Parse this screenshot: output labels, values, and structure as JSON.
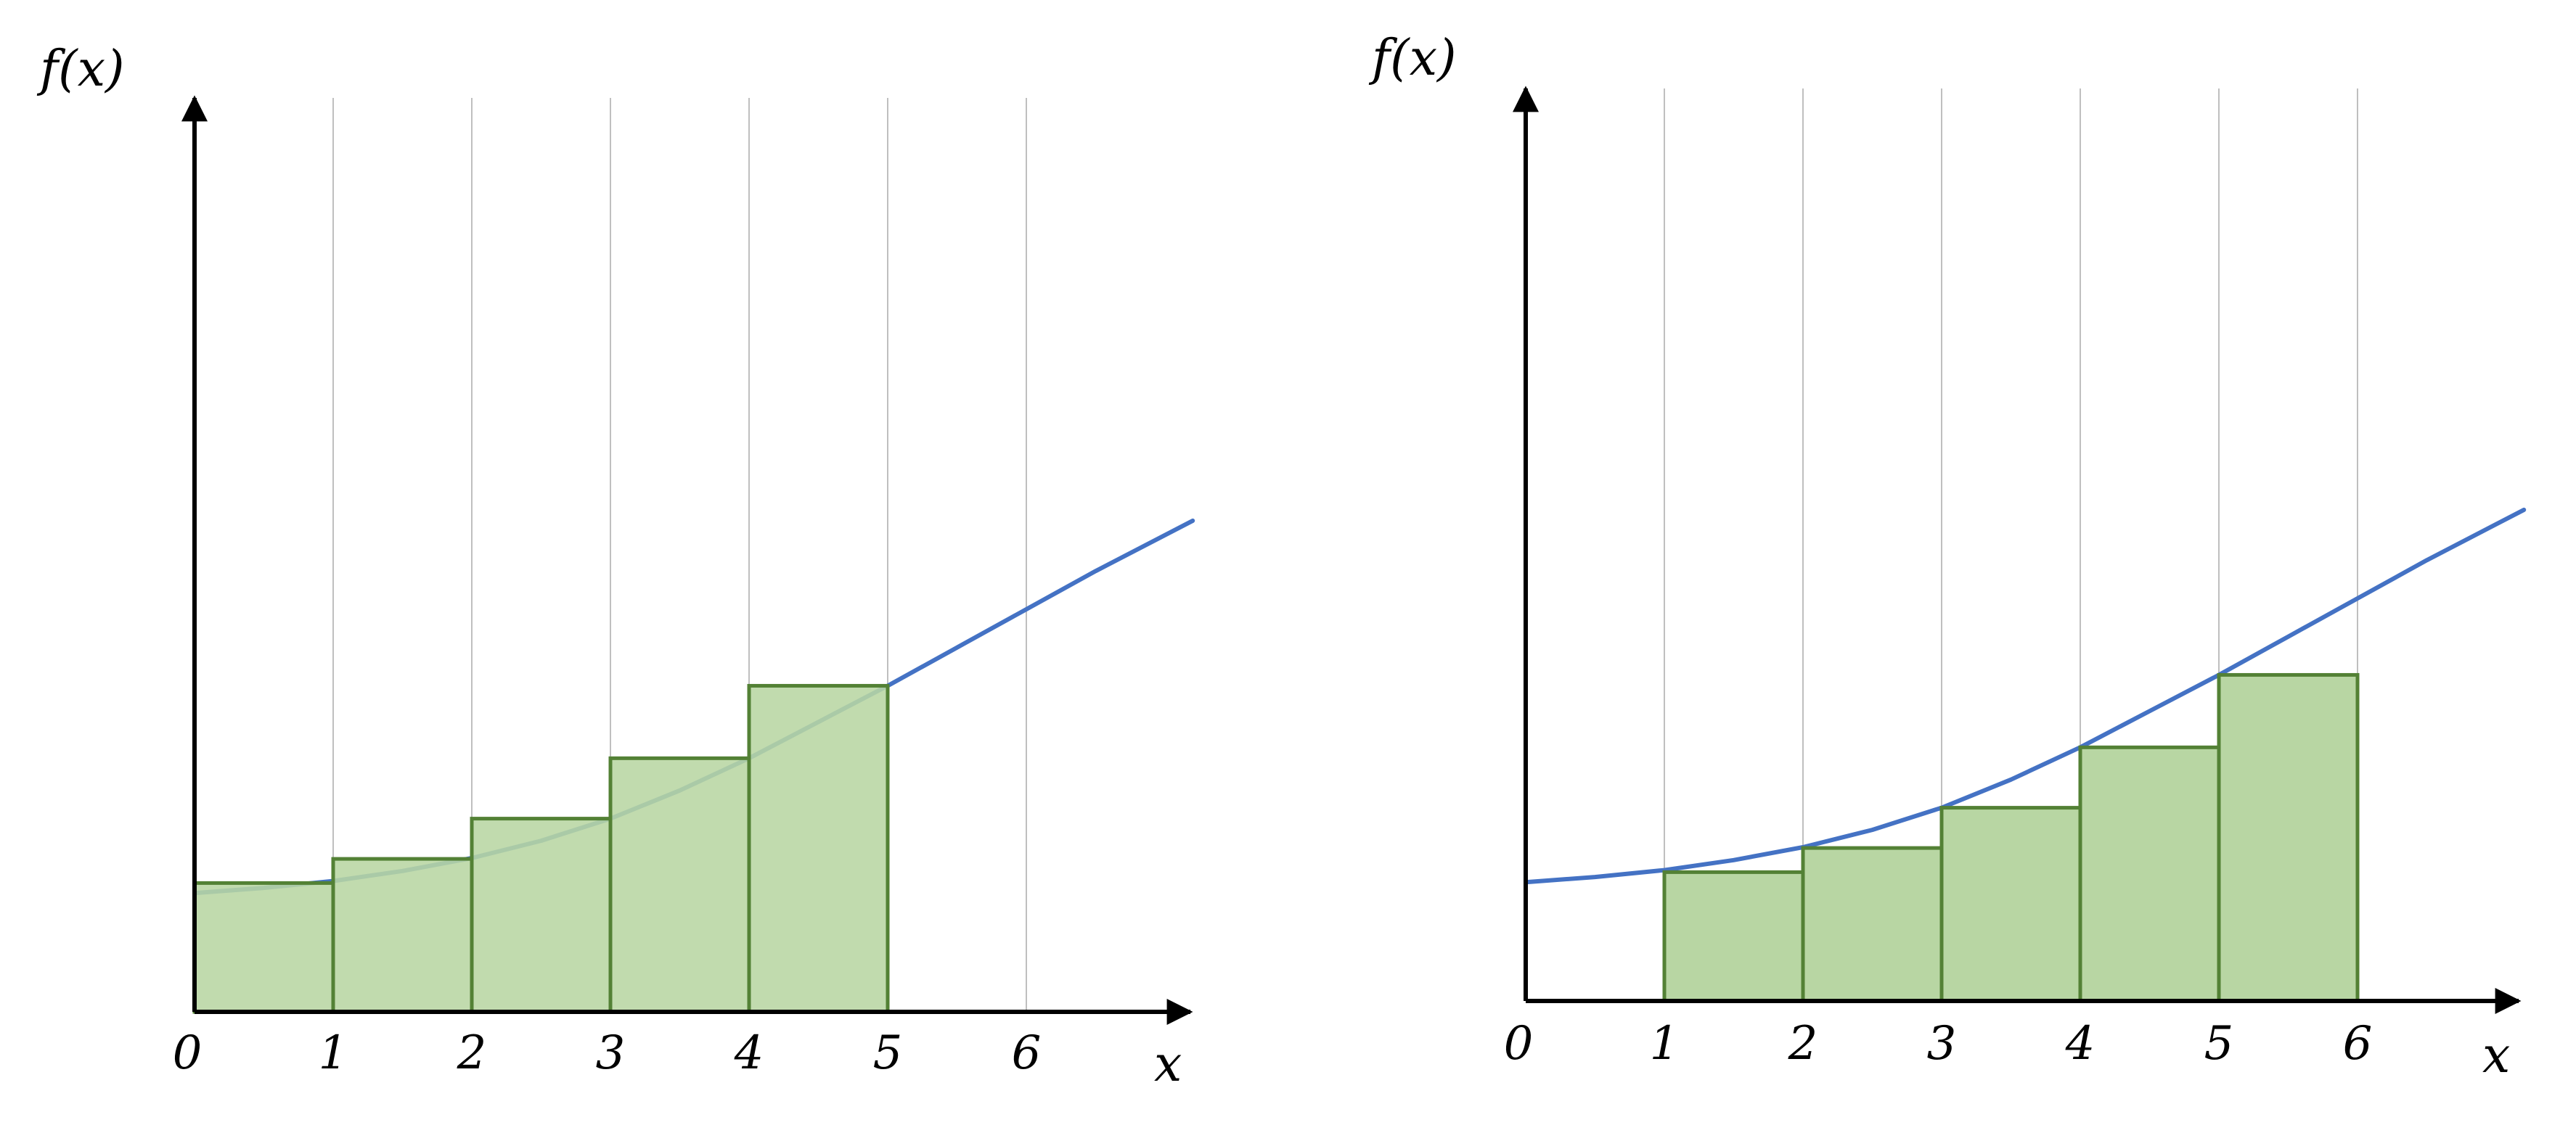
{
  "colors": {
    "bar_fill": "#b8d6a3",
    "bar_stroke": "#538135",
    "curve": "#4472c4",
    "curve_behind_bars": "#4f8a8b",
    "grid": "#bfbfbf",
    "axis": "#000000"
  },
  "chart_data": [
    {
      "type": "bar",
      "description_kind": "left Riemann sum",
      "ylabel": "f(x)",
      "xlabel": "x",
      "x_ticks": [
        "0",
        "1",
        "2",
        "3",
        "4",
        "5",
        "6"
      ],
      "x_range": [
        0,
        7.2
      ],
      "y_range": [
        0,
        13.2
      ],
      "grid_x": [
        1,
        2,
        3,
        4,
        5,
        6
      ],
      "rects": [
        {
          "x0": 0,
          "x1": 1,
          "height": 3.2
        },
        {
          "x0": 1,
          "x1": 2,
          "height": 3.8
        },
        {
          "x0": 2,
          "x1": 3,
          "height": 4.8
        },
        {
          "x0": 3,
          "x1": 4,
          "height": 6.3
        },
        {
          "x0": 4,
          "x1": 5,
          "height": 8.1
        }
      ],
      "curve": [
        [
          0,
          2.95
        ],
        [
          0.5,
          3.08
        ],
        [
          1,
          3.25
        ],
        [
          1.5,
          3.5
        ],
        [
          2,
          3.82
        ],
        [
          2.5,
          4.25
        ],
        [
          3,
          4.8
        ],
        [
          3.5,
          5.5
        ],
        [
          4,
          6.3
        ],
        [
          4.5,
          7.2
        ],
        [
          5,
          8.1
        ],
        [
          5.5,
          9.05
        ],
        [
          6,
          10.0
        ],
        [
          6.5,
          10.95
        ],
        [
          7.2,
          12.2
        ]
      ]
    },
    {
      "type": "bar",
      "description_kind": "right Riemann sum",
      "ylabel": "f(x)",
      "xlabel": "x",
      "x_ticks": [
        "0",
        "1",
        "2",
        "3",
        "4",
        "5",
        "6"
      ],
      "x_range": [
        0,
        7.2
      ],
      "y_range": [
        0,
        13.2
      ],
      "grid_x": [
        1,
        2,
        3,
        4,
        5,
        6
      ],
      "rects": [
        {
          "x0": 1,
          "x1": 2,
          "height": 3.2
        },
        {
          "x0": 2,
          "x1": 3,
          "height": 3.8
        },
        {
          "x0": 3,
          "x1": 4,
          "height": 4.8
        },
        {
          "x0": 4,
          "x1": 5,
          "height": 6.3
        },
        {
          "x0": 5,
          "x1": 6,
          "height": 8.1
        }
      ],
      "curve": [
        [
          0,
          2.95
        ],
        [
          0.5,
          3.08
        ],
        [
          1,
          3.25
        ],
        [
          1.5,
          3.5
        ],
        [
          2,
          3.82
        ],
        [
          2.5,
          4.25
        ],
        [
          3,
          4.8
        ],
        [
          3.5,
          5.5
        ],
        [
          4,
          6.3
        ],
        [
          4.5,
          7.2
        ],
        [
          5,
          8.1
        ],
        [
          5.5,
          9.05
        ],
        [
          6,
          10.0
        ],
        [
          6.5,
          10.95
        ],
        [
          7.2,
          12.2
        ]
      ]
    }
  ]
}
